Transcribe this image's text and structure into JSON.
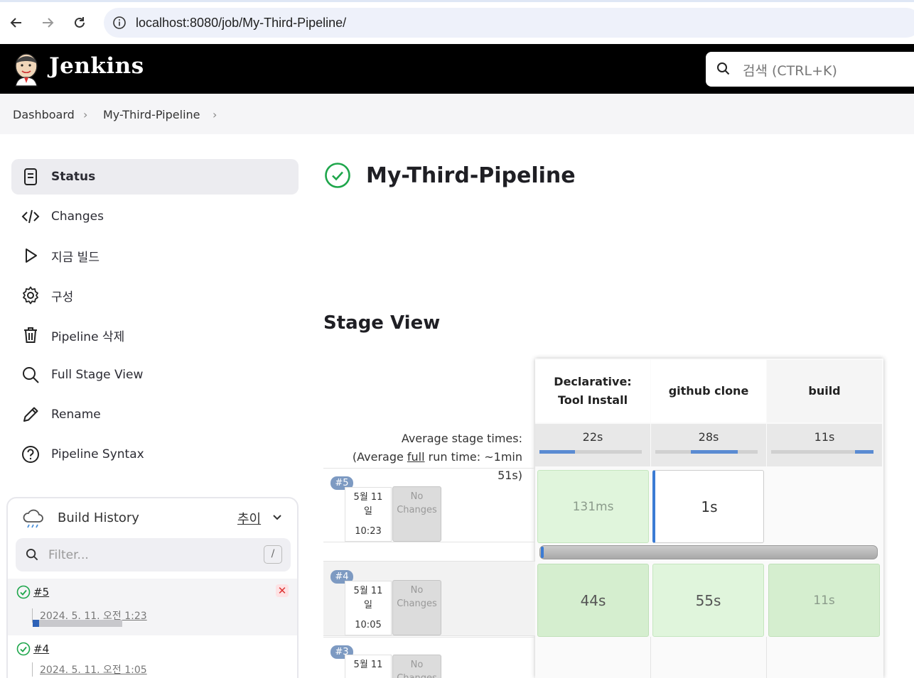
{
  "browser": {
    "url": "localhost:8080/job/My-Third-Pipeline/"
  },
  "header": {
    "brand": "Jenkins",
    "search_placeholder": "검색 (CTRL+K)"
  },
  "breadcrumb": [
    "Dashboard",
    "My-Third-Pipeline"
  ],
  "sidebar": {
    "items": [
      {
        "label": "Status",
        "icon": "status-icon"
      },
      {
        "label": "Changes",
        "icon": "code-icon"
      },
      {
        "label": "지금 빌드",
        "icon": "play-icon"
      },
      {
        "label": "구성",
        "icon": "gear-icon"
      },
      {
        "label": "Pipeline 삭제",
        "icon": "trash-icon"
      },
      {
        "label": "Full Stage View",
        "icon": "search-icon"
      },
      {
        "label": "Rename",
        "icon": "pencil-icon"
      },
      {
        "label": "Pipeline Syntax",
        "icon": "help-icon"
      }
    ]
  },
  "build_history": {
    "title": "Build History",
    "trend_label": "추이",
    "filter_placeholder": "Filter...",
    "filter_shortcut": "/",
    "builds": [
      {
        "number": "#5",
        "date": "2024. 5. 11. 오전 1:23",
        "progress": 0.07
      },
      {
        "number": "#4",
        "date": "2024. 5. 11. 오전 1:05"
      }
    ]
  },
  "main": {
    "title": "My-Third-Pipeline",
    "stage_view_title": "Stage View"
  },
  "stage_view": {
    "avg_label_line1": "Average stage times:",
    "avg_label_pre": "(Average ",
    "avg_label_link": "full",
    "avg_label_post": " run time: ~1min",
    "avg_label_line3": "51s)",
    "stages": [
      {
        "name_line1": "Declarative:",
        "name_line2": "Tool Install",
        "avg": "22s"
      },
      {
        "name_line1": "github clone",
        "name_line2": "",
        "avg": "28s"
      },
      {
        "name_line1": "build",
        "name_line2": "",
        "avg": "11s"
      }
    ],
    "runs": [
      {
        "badge": "#5",
        "date_line1": "5월 11",
        "date_line2": "일",
        "time": "10:23",
        "changes_line1": "No",
        "changes_line2": "Changes",
        "cells": [
          "131ms",
          "1s",
          ""
        ]
      },
      {
        "badge": "#4",
        "date_line1": "5월 11",
        "date_line2": "일",
        "time": "10:05",
        "changes_line1": "No",
        "changes_line2": "Changes",
        "cells": [
          "44s",
          "55s",
          "11s"
        ]
      },
      {
        "badge": "#3",
        "date_line1": "5월 11",
        "date_line2": "",
        "time": "",
        "changes_line1": "No",
        "changes_line2": "Changes",
        "cells": [
          "",
          "",
          ""
        ]
      }
    ]
  },
  "colors": {
    "header_bg": "#000000",
    "success": "#1ea64b",
    "stage_success": "#e0f5dc",
    "running_blue": "#3b7bd4"
  }
}
